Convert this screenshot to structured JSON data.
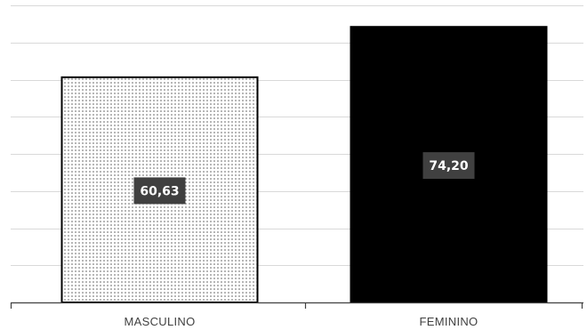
{
  "chart_data": {
    "type": "bar",
    "categories": [
      "MASCULINO",
      "FEMININO"
    ],
    "values": [
      60.63,
      74.2
    ],
    "data_labels": [
      "60,63",
      "74,20"
    ],
    "bar_fills": [
      "dotted-pattern",
      "#000000"
    ],
    "ylim": [
      0,
      80
    ],
    "grid": true,
    "legend": "none",
    "title": "",
    "xlabel": "",
    "ylabel": ""
  }
}
